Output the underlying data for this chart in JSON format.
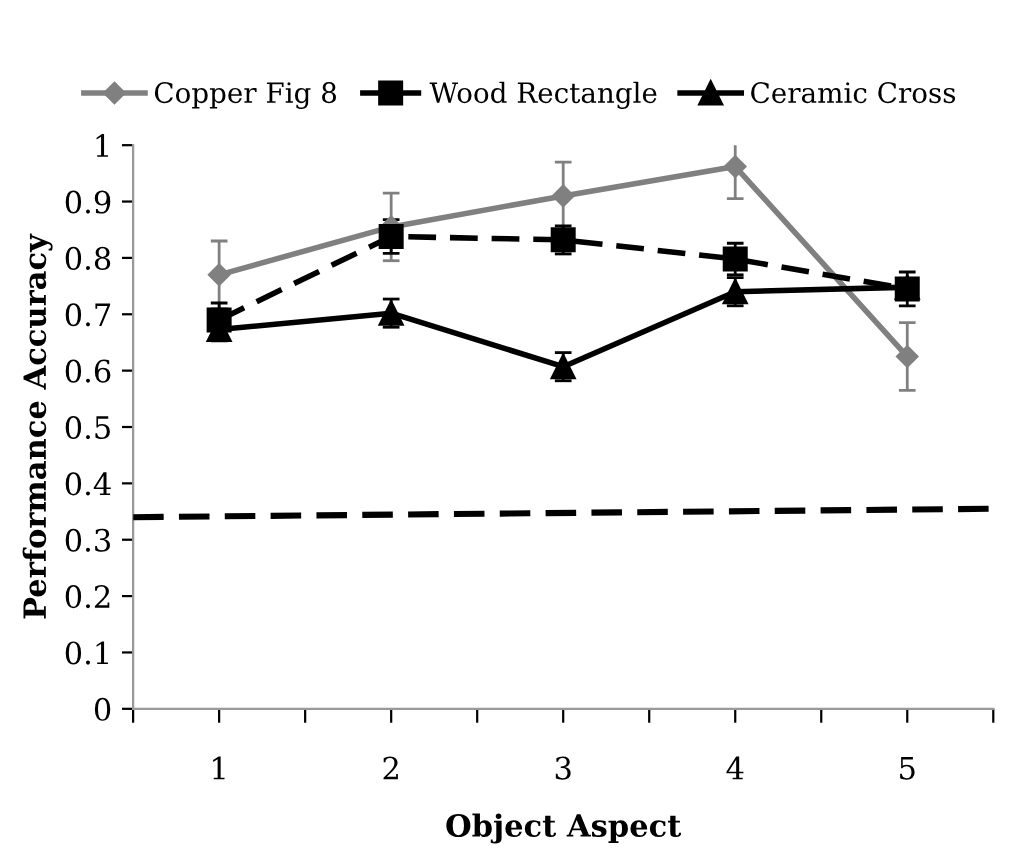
{
  "chart_data": {
    "type": "line",
    "xlabel": "Object Aspect",
    "ylabel": "Performance Accuracy",
    "x": [
      1,
      2,
      3,
      4,
      5
    ],
    "xlim": [
      0.5,
      5.5
    ],
    "xticks": [
      {
        "value": 0.5,
        "label": null
      },
      1,
      {
        "value": 1.5,
        "label": null
      },
      2,
      {
        "value": 2.5,
        "label": null
      },
      3,
      {
        "value": 3.5,
        "label": null
      },
      4,
      {
        "value": 4.5,
        "label": null
      },
      5,
      {
        "value": 5.5,
        "label": null
      }
    ],
    "ylim": [
      0,
      1
    ],
    "yticks": [
      0,
      0.1,
      0.2,
      0.3,
      0.4,
      0.5,
      0.6,
      0.7,
      0.8,
      0.9,
      1
    ],
    "grid": false,
    "legend": "top",
    "series": [
      {
        "name": "Copper Fig 8",
        "color": "#808080",
        "marker": "diamond",
        "line_style": "solid",
        "values": [
          0.77,
          0.855,
          0.91,
          0.962,
          0.625
        ],
        "errors": [
          0.06,
          0.06,
          0.06,
          0.057,
          0.06
        ]
      },
      {
        "name": "Wood Rectangle",
        "color": "#000000",
        "marker": "square",
        "line_style": "dashed",
        "values": [
          0.69,
          0.838,
          0.832,
          0.798,
          0.745
        ],
        "errors": [
          0.03,
          0.03,
          0.025,
          0.028,
          0.03
        ]
      },
      {
        "name": "Ceramic Cross",
        "color": "#000000",
        "marker": "triangle",
        "line_style": "solid",
        "values": [
          0.673,
          0.702,
          0.607,
          0.74,
          0.748
        ],
        "errors": [
          0.02,
          0.025,
          0.025,
          0.025,
          null
        ]
      },
      {
        "color": "#000000",
        "marker": "none",
        "line_style": "dashed",
        "x": [
          0.5,
          5.5
        ],
        "values": [
          0.34,
          0.355
        ]
      }
    ]
  }
}
